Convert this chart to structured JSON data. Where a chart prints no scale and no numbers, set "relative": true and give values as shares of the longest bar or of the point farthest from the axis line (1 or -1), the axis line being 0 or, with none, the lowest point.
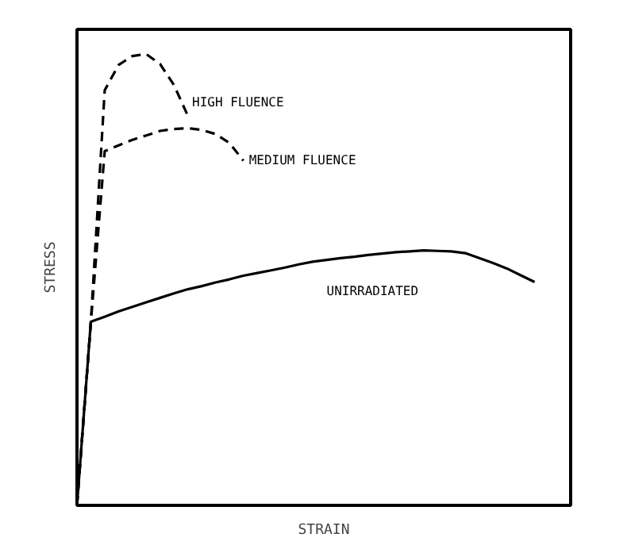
{
  "chart_data": {
    "type": "line",
    "relative": true,
    "xlabel": "STRAIN",
    "ylabel": "STRESS",
    "tick_labels": false,
    "grid": false,
    "marker": "none",
    "categories": [
      null,
      null,
      null,
      null,
      null,
      null,
      null,
      null,
      null,
      null,
      null,
      null,
      null,
      null,
      null,
      null,
      null,
      null,
      null,
      null,
      null,
      null,
      null,
      null,
      null,
      null,
      null,
      null,
      null,
      null,
      null,
      null,
      null,
      null
    ],
    "series": [
      {
        "name": "HIGH FLUENCE",
        "color": "#000000",
        "line_style": "dashed",
        "values": [
          0,
          0.406,
          0.92,
          0.976,
          0.996,
          1.0,
          0.978,
          0.931,
          0.863,
          null,
          null,
          null,
          null,
          null,
          null,
          null,
          null,
          null,
          null,
          null,
          null,
          null,
          null,
          null,
          null,
          null,
          null,
          null,
          null,
          null,
          null,
          null,
          null,
          null
        ]
      },
      {
        "name": "MEDIUM FLUENCE",
        "color": "#000000",
        "line_style": "dashed",
        "values": [
          0,
          0.406,
          0.785,
          0.798,
          0.81,
          0.82,
          0.83,
          0.834,
          0.836,
          0.832,
          0.823,
          0.803,
          0.764,
          null,
          null,
          null,
          null,
          null,
          null,
          null,
          null,
          null,
          null,
          null,
          null,
          null,
          null,
          null,
          null,
          null,
          null,
          null,
          null,
          null
        ]
      },
      {
        "name": "UNIRRADIATED",
        "color": "#000000",
        "line_style": "solid",
        "values": [
          0,
          0.407,
          0.418,
          0.43,
          0.44,
          0.45,
          0.46,
          0.47,
          0.479,
          0.486,
          0.494,
          0.501,
          0.509,
          0.515,
          0.521,
          0.527,
          0.534,
          0.54,
          0.544,
          0.548,
          0.551,
          0.555,
          0.558,
          0.561,
          0.563,
          0.565,
          0.564,
          0.563,
          0.559,
          0.548,
          0.537,
          0.525,
          0.51,
          0.495
        ]
      }
    ]
  }
}
